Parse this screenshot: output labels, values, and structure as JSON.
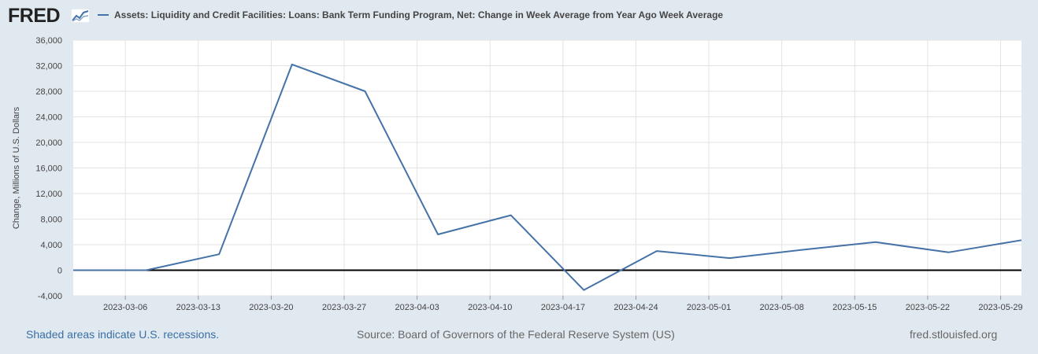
{
  "header": {
    "logo": "FRED",
    "logo_icon": "fred-trend-icon",
    "legend_label": "Assets: Liquidity and Credit Facilities: Loans: Bank Term Funding Program, Net: Change in Week Average from Year Ago Week Average"
  },
  "footer": {
    "recession_note": "Shaded areas indicate U.S. recessions.",
    "source": "Source: Board of Governors of the Federal Reserve System (US)",
    "site": "fred.stlouisfed.org"
  },
  "colors": {
    "series": "#4572a7",
    "background": "#e1e9f0",
    "plot": "#ffffff",
    "grid": "#e3e3e3",
    "zero_line": "#000000"
  },
  "chart_data": {
    "type": "line",
    "title": "",
    "xlabel": "",
    "ylabel": "Change, Millions of U.S. Dollars",
    "ylim": [
      -4000,
      36000
    ],
    "yticks": [
      -4000,
      0,
      4000,
      8000,
      12000,
      16000,
      20000,
      24000,
      28000,
      32000,
      36000
    ],
    "ytick_labels": [
      "-4,000",
      "0",
      "4,000",
      "8,000",
      "12,000",
      "16,000",
      "20,000",
      "24,000",
      "28,000",
      "32,000",
      "36,000"
    ],
    "xlim": [
      "2023-03-01",
      "2023-05-31"
    ],
    "xticks": [
      "2023-03-06",
      "2023-03-13",
      "2023-03-20",
      "2023-03-27",
      "2023-04-03",
      "2023-04-10",
      "2023-04-17",
      "2023-04-24",
      "2023-05-01",
      "2023-05-08",
      "2023-05-15",
      "2023-05-22",
      "2023-05-29"
    ],
    "grid": true,
    "legend": "top-left",
    "series": [
      {
        "name": "Assets: Liquidity and Credit Facilities: Loans: Bank Term Funding Program, Net: Change in Week Average from Year Ago Week Average",
        "x": [
          "2023-03-01",
          "2023-03-08",
          "2023-03-15",
          "2023-03-22",
          "2023-03-29",
          "2023-04-05",
          "2023-04-12",
          "2023-04-19",
          "2023-04-26",
          "2023-05-03",
          "2023-05-10",
          "2023-05-17",
          "2023-05-24",
          "2023-05-31"
        ],
        "values": [
          0,
          0,
          2500,
          32200,
          28000,
          5600,
          8600,
          -3100,
          3000,
          1900,
          3200,
          4400,
          2800,
          4700
        ]
      }
    ]
  }
}
